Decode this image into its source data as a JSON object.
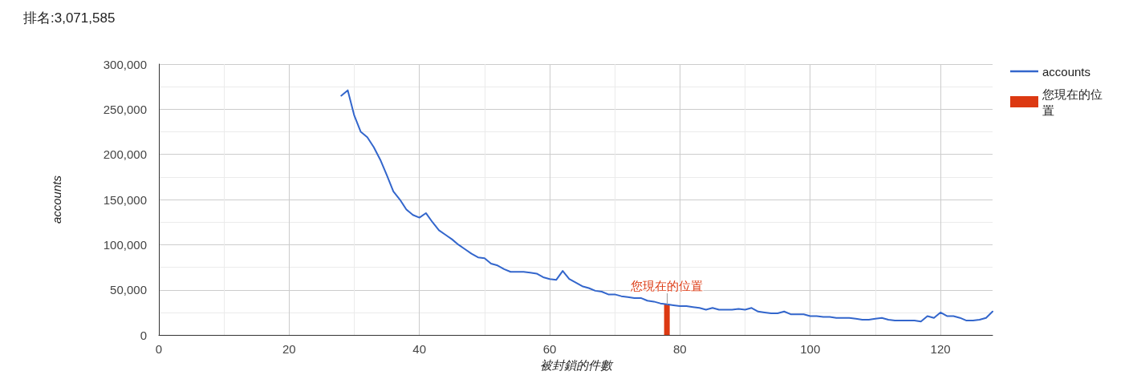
{
  "chart_data": {
    "type": "line",
    "title": "排名:3,071,585",
    "xlabel": "被封鎖的件數",
    "ylabel": "accounts",
    "x": [
      28,
      29,
      30,
      31,
      32,
      33,
      34,
      35,
      36,
      37,
      38,
      39,
      40,
      41,
      42,
      43,
      44,
      45,
      46,
      47,
      48,
      49,
      50,
      51,
      52,
      53,
      54,
      55,
      56,
      57,
      58,
      59,
      60,
      61,
      62,
      63,
      64,
      65,
      66,
      67,
      68,
      69,
      70,
      71,
      72,
      73,
      74,
      75,
      76,
      77,
      78,
      79,
      80,
      81,
      82,
      83,
      84,
      85,
      86,
      87,
      88,
      89,
      90,
      91,
      92,
      93,
      94,
      95,
      96,
      97,
      98,
      99,
      100,
      101,
      102,
      103,
      104,
      105,
      106,
      107,
      108,
      109,
      110,
      111,
      112,
      113,
      114,
      115,
      116,
      117,
      118,
      119,
      120,
      121,
      122,
      123,
      124,
      125,
      126,
      127,
      128
    ],
    "series": [
      {
        "name": "accounts",
        "color": "#3366cc",
        "values": [
          265000,
          271000,
          243000,
          225000,
          219000,
          208000,
          194000,
          177000,
          159000,
          150000,
          139000,
          133000,
          130000,
          135000,
          125000,
          116000,
          111000,
          106000,
          100000,
          95000,
          90000,
          86000,
          85000,
          79000,
          77000,
          73000,
          70000,
          70000,
          70000,
          69000,
          68000,
          64000,
          62000,
          61000,
          71000,
          62000,
          58000,
          54000,
          52000,
          49000,
          48000,
          45000,
          45000,
          43000,
          42000,
          41000,
          41000,
          38000,
          37000,
          35000,
          34000,
          33000,
          32000,
          32000,
          31000,
          30000,
          28000,
          30000,
          28000,
          28000,
          28000,
          29000,
          28000,
          30000,
          26000,
          25000,
          24000,
          24000,
          26000,
          23000,
          23000,
          23000,
          21000,
          21000,
          20000,
          20000,
          19000,
          19000,
          19000,
          18000,
          17000,
          17000,
          18000,
          19000,
          17000,
          16000,
          16000,
          16000,
          16000,
          15000,
          21000,
          19000,
          25000,
          21000,
          21000,
          19000,
          16000,
          16000,
          17000,
          19000,
          26000
        ]
      },
      {
        "name": "您現在的位置",
        "type": "bar",
        "color": "#dc3912",
        "x": [
          78
        ],
        "values": [
          34000
        ]
      }
    ],
    "xlim": [
      0,
      128
    ],
    "xticks": [
      0,
      20,
      40,
      60,
      80,
      100,
      120
    ],
    "ylim": [
      0,
      300000
    ],
    "yticks": [
      0,
      {
        "value": 50000,
        "label": "50,000"
      },
      {
        "value": 100000,
        "label": "100,000"
      },
      {
        "value": 150000,
        "label": "150,000"
      },
      {
        "value": 200000,
        "label": "200,000"
      },
      {
        "value": 250000,
        "label": "250,000"
      },
      {
        "value": 300000,
        "label": "300,000"
      }
    ],
    "grid": true,
    "legend": "right",
    "annotations": [
      {
        "text": "您現在的位置",
        "x": 78,
        "y": 34000
      }
    ]
  }
}
